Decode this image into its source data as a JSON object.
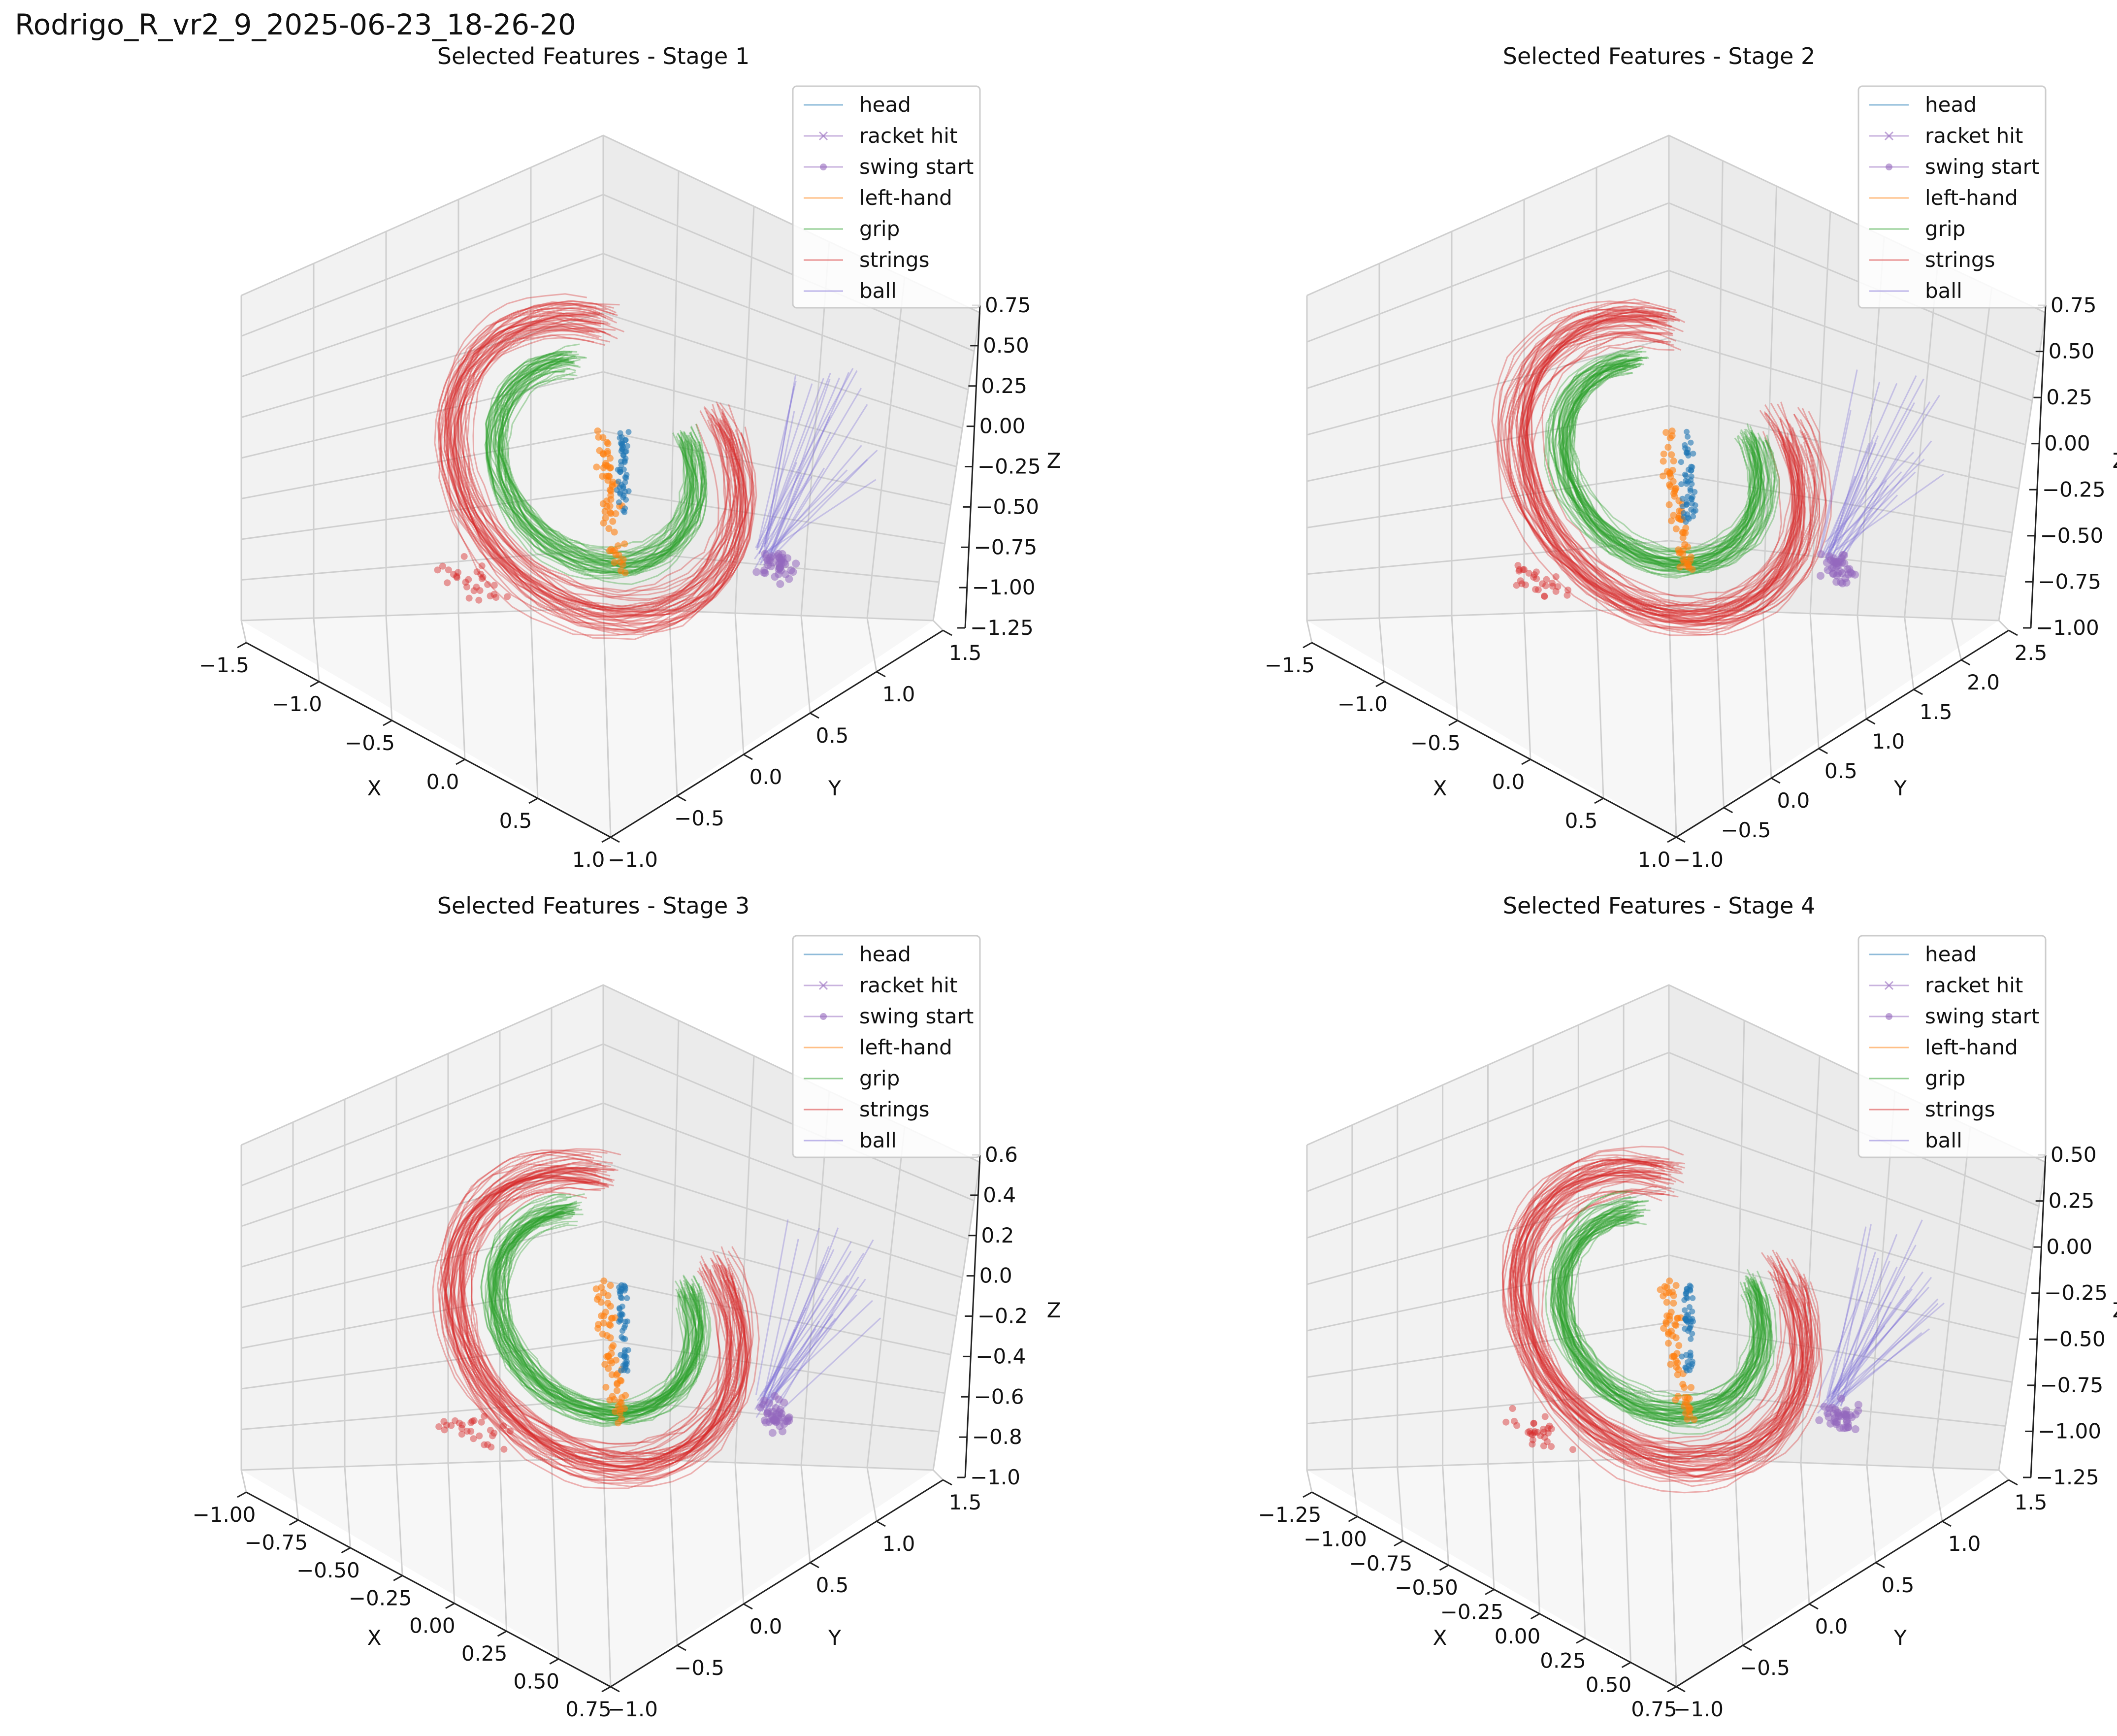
{
  "figure": {
    "title": "Rodrigo_R_vr2_9_2025-06-23_18-26-20"
  },
  "colors": {
    "head": "#1f77b4",
    "racket_hit": "#9467bd",
    "swing_start": "#9467bd",
    "left_hand": "#ff7f0e",
    "grip": "#2ca02c",
    "strings": "#d62728",
    "ball": "#7f6fd6",
    "pane_back": "#f2f2f2",
    "pane_side": "#ebebeb",
    "pane_floor": "#f7f7f7",
    "grid": "#cfcfcf"
  },
  "chart_data": [
    {
      "type": "scatter3d",
      "title": "Selected Features - Stage 1",
      "xlabel": "X",
      "ylabel": "Y",
      "zlabel": "Z",
      "xlim": [
        -1.5,
        1.0
      ],
      "ylim": [
        -1.0,
        1.5
      ],
      "zlim": [
        -1.25,
        0.75
      ],
      "xticks": [
        "−1.5",
        "−1.0",
        "−0.5",
        "0.0",
        "0.5",
        "1.0"
      ],
      "yticks": [
        "−1.0",
        "−0.5",
        "0.0",
        "0.5",
        "1.0",
        "1.5"
      ],
      "zticks": [
        "−1.25",
        "−1.00",
        "−0.75",
        "−0.50",
        "−0.25",
        "0.00",
        "0.25",
        "0.50",
        "0.75"
      ],
      "legend": [
        "head",
        "racket hit",
        "swing start",
        "left-hand",
        "grip",
        "strings",
        "ball"
      ],
      "legend_position": "upper right",
      "series": [
        {
          "name": "head",
          "cluster": [
            -0.05,
            0.1,
            -0.05
          ]
        },
        {
          "name": "left-hand",
          "cluster": [
            -0.1,
            0.15,
            -0.2
          ]
        },
        {
          "name": "strings",
          "trajectory": "loop",
          "count": 40
        },
        {
          "name": "grip",
          "trajectory": "loop",
          "count": 40
        },
        {
          "name": "racket hit",
          "cluster": [
            0.6,
            0.6,
            -0.8
          ]
        },
        {
          "name": "ball",
          "trajectory": "streaks",
          "count": 25
        }
      ]
    },
    {
      "type": "scatter3d",
      "title": "Selected Features - Stage 2",
      "xlabel": "X",
      "ylabel": "Y",
      "zlabel": "Z",
      "xlim": [
        -1.5,
        1.0
      ],
      "ylim": [
        -1.0,
        2.5
      ],
      "zlim": [
        -1.0,
        0.75
      ],
      "xticks": [
        "−1.5",
        "−1.0",
        "−0.5",
        "0.0",
        "0.5",
        "1.0"
      ],
      "yticks": [
        "−1.0",
        "−0.5",
        "0.0",
        "0.5",
        "1.0",
        "1.5",
        "2.0",
        "2.5"
      ],
      "zticks": [
        "−1.00",
        "−0.75",
        "−0.50",
        "−0.25",
        "0.00",
        "0.25",
        "0.50",
        "0.75"
      ],
      "legend": [
        "head",
        "racket hit",
        "swing start",
        "left-hand",
        "grip",
        "strings",
        "ball"
      ],
      "legend_position": "upper right",
      "series": [
        {
          "name": "head",
          "cluster": [
            -0.05,
            0.1,
            -0.05
          ]
        },
        {
          "name": "left-hand",
          "cluster": [
            -0.1,
            0.15,
            -0.25
          ]
        },
        {
          "name": "strings",
          "trajectory": "loop",
          "count": 45
        },
        {
          "name": "grip",
          "trajectory": "loop",
          "count": 45
        },
        {
          "name": "racket hit",
          "cluster": [
            0.6,
            0.6,
            -0.8
          ]
        },
        {
          "name": "ball",
          "trajectory": "streaks",
          "count": 25
        }
      ]
    },
    {
      "type": "scatter3d",
      "title": "Selected Features - Stage 3",
      "xlabel": "X",
      "ylabel": "Y",
      "zlabel": "Z",
      "xlim": [
        -1.0,
        0.75
      ],
      "ylim": [
        -1.0,
        1.5
      ],
      "zlim": [
        -1.0,
        0.6
      ],
      "xticks": [
        "−1.00",
        "−0.75",
        "−0.50",
        "−0.25",
        "0.00",
        "0.25",
        "0.50",
        "0.75"
      ],
      "yticks": [
        "−1.0",
        "−0.5",
        "0.0",
        "0.5",
        "1.0",
        "1.5"
      ],
      "zticks": [
        "−1.0",
        "−0.8",
        "−0.6",
        "−0.4",
        "−0.2",
        "0.0",
        "0.2",
        "0.4",
        "0.6"
      ],
      "legend": [
        "head",
        "racket hit",
        "swing start",
        "left-hand",
        "grip",
        "strings",
        "ball"
      ],
      "legend_position": "upper right",
      "series": [
        {
          "name": "head",
          "cluster": [
            -0.05,
            0.1,
            -0.05
          ]
        },
        {
          "name": "left-hand",
          "cluster": [
            -0.1,
            0.15,
            -0.25
          ]
        },
        {
          "name": "strings",
          "trajectory": "loop",
          "count": 45
        },
        {
          "name": "grip",
          "trajectory": "loop",
          "count": 45
        },
        {
          "name": "racket hit",
          "cluster": [
            0.55,
            0.6,
            -0.8
          ]
        },
        {
          "name": "ball",
          "trajectory": "streaks",
          "count": 25
        }
      ]
    },
    {
      "type": "scatter3d",
      "title": "Selected Features - Stage 4",
      "xlabel": "X",
      "ylabel": "Y",
      "zlabel": "Z",
      "xlim": [
        -1.25,
        0.75
      ],
      "ylim": [
        -1.0,
        1.5
      ],
      "zlim": [
        -1.25,
        0.5
      ],
      "xticks": [
        "−1.25",
        "−1.00",
        "−0.75",
        "−0.50",
        "−0.25",
        "0.00",
        "0.25",
        "0.50",
        "0.75"
      ],
      "yticks": [
        "−1.0",
        "−0.5",
        "0.0",
        "0.5",
        "1.0",
        "1.5"
      ],
      "zticks": [
        "−1.25",
        "−1.00",
        "−0.75",
        "−0.50",
        "−0.25",
        "0.00",
        "0.25",
        "0.50"
      ],
      "legend": [
        "head",
        "racket hit",
        "swing start",
        "left-hand",
        "grip",
        "strings",
        "ball"
      ],
      "legend_position": "upper right",
      "series": [
        {
          "name": "head",
          "cluster": [
            -0.05,
            0.1,
            -0.05
          ]
        },
        {
          "name": "left-hand",
          "cluster": [
            -0.1,
            0.15,
            -0.25
          ]
        },
        {
          "name": "strings",
          "trajectory": "loop",
          "count": 45
        },
        {
          "name": "grip",
          "trajectory": "loop",
          "count": 45
        },
        {
          "name": "racket hit",
          "cluster": [
            0.55,
            0.6,
            -0.8
          ]
        },
        {
          "name": "ball",
          "trajectory": "streaks",
          "count": 25
        }
      ]
    }
  ]
}
